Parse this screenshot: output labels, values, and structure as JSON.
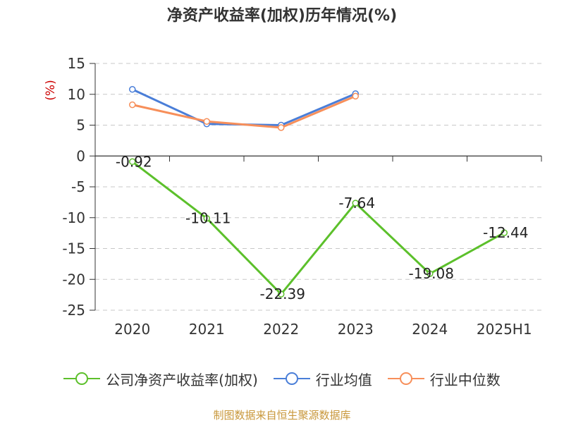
{
  "title": "净资产收益率(加权)历年情况(%)",
  "source": "制图数据来自恒生聚源数据库",
  "colors": {
    "company": "#5cc02b",
    "industry_avg": "#4a7ed8",
    "industry_median": "#f78f5a",
    "axis": "#333333",
    "grid": "#c8c8c8",
    "unit": "#cc0000"
  },
  "chart_data": {
    "type": "line",
    "categories": [
      "2020",
      "2021",
      "2022",
      "2023",
      "2024",
      "2025H1"
    ],
    "ylabel": "(%)",
    "ylim": [
      -25,
      15
    ],
    "yticks": [
      15,
      10,
      5,
      0,
      -5,
      -10,
      -15,
      -20,
      -25
    ],
    "grid": true,
    "legend_position": "bottom",
    "series": [
      {
        "key": "company",
        "name": "公司净资产收益率(加权)",
        "values": [
          -0.92,
          -10.11,
          -22.39,
          -7.64,
          -19.08,
          -12.44
        ],
        "labels": [
          "-0.92",
          "-10.11",
          "-22.39",
          "-7.64",
          "-19.08",
          "-12.44"
        ]
      },
      {
        "key": "industry_avg",
        "name": "行业均值",
        "values": [
          10.8,
          5.2,
          5.0,
          10.1,
          null,
          null
        ]
      },
      {
        "key": "industry_median",
        "name": "行业中位数",
        "values": [
          8.3,
          5.6,
          4.6,
          9.7,
          null,
          null
        ]
      }
    ]
  }
}
